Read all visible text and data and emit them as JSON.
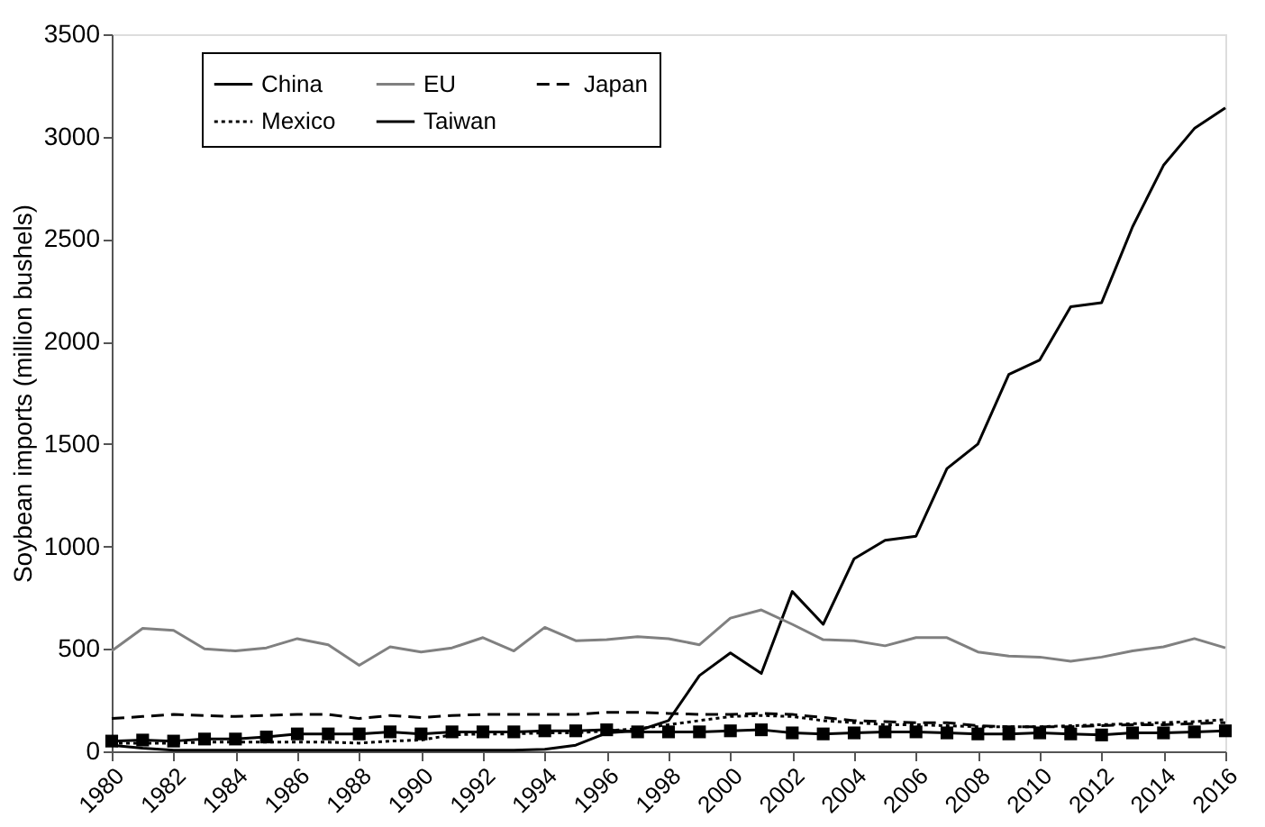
{
  "chart_data": {
    "type": "line",
    "ylabel": "Soybean imports (million bushels)",
    "x": [
      1980,
      1981,
      1982,
      1983,
      1984,
      1985,
      1986,
      1987,
      1988,
      1989,
      1990,
      1991,
      1992,
      1993,
      1994,
      1995,
      1996,
      1997,
      1998,
      1999,
      2000,
      2001,
      2002,
      2003,
      2004,
      2005,
      2006,
      2007,
      2008,
      2009,
      2010,
      2011,
      2012,
      2013,
      2014,
      2015,
      2016
    ],
    "xlim": [
      1980,
      2016
    ],
    "xticks": [
      1980,
      1982,
      1984,
      1986,
      1988,
      1990,
      1992,
      1994,
      1996,
      1998,
      2000,
      2002,
      2004,
      2006,
      2008,
      2010,
      2012,
      2014,
      2016
    ],
    "ylim": [
      0,
      3500
    ],
    "yticks": [
      0,
      500,
      1000,
      1500,
      2000,
      2500,
      3000,
      3500
    ],
    "grid": false,
    "legend": "top left",
    "series": [
      {
        "name": "China",
        "color": "#000000",
        "line_style": "solid",
        "marker": "none",
        "values": [
          30,
          15,
          5,
          5,
          5,
          5,
          5,
          5,
          5,
          5,
          5,
          5,
          5,
          5,
          10,
          30,
          90,
          100,
          150,
          370,
          480,
          380,
          780,
          620,
          940,
          1030,
          1050,
          1380,
          1500,
          1840,
          1910,
          2170,
          2190,
          2560,
          2860,
          3040,
          3140
        ]
      },
      {
        "name": "EU",
        "color": "#808080",
        "line_style": "solid",
        "marker": "none",
        "values": [
          490,
          600,
          590,
          500,
          490,
          505,
          550,
          520,
          420,
          510,
          485,
          505,
          555,
          490,
          605,
          540,
          545,
          560,
          550,
          520,
          650,
          690,
          620,
          545,
          540,
          515,
          555,
          555,
          485,
          465,
          460,
          440,
          460,
          490,
          510,
          550,
          505
        ]
      },
      {
        "name": "Japan",
        "color": "#000000",
        "line_style": "dashed",
        "marker": "none",
        "values": [
          160,
          170,
          180,
          175,
          170,
          175,
          180,
          180,
          160,
          175,
          165,
          175,
          180,
          180,
          180,
          180,
          190,
          190,
          185,
          180,
          180,
          185,
          180,
          165,
          150,
          145,
          140,
          140,
          125,
          120,
          120,
          120,
          125,
          130,
          130,
          135,
          140
        ]
      },
      {
        "name": "Mexico",
        "color": "#000000",
        "line_style": "dotted",
        "marker": "none",
        "values": [
          40,
          40,
          40,
          45,
          45,
          45,
          45,
          45,
          40,
          50,
          55,
          80,
          85,
          85,
          90,
          90,
          100,
          110,
          130,
          150,
          170,
          175,
          170,
          150,
          140,
          130,
          130,
          125,
          120,
          120,
          120,
          125,
          130,
          135,
          140,
          145,
          155
        ]
      },
      {
        "name": "Taiwan",
        "color": "#000000",
        "line_style": "solid",
        "marker": "square",
        "values": [
          50,
          55,
          50,
          60,
          60,
          70,
          85,
          85,
          85,
          95,
          85,
          95,
          95,
          95,
          100,
          100,
          105,
          95,
          95,
          95,
          100,
          105,
          90,
          85,
          90,
          95,
          95,
          90,
          85,
          85,
          90,
          85,
          80,
          90,
          90,
          95,
          100
        ]
      }
    ]
  }
}
